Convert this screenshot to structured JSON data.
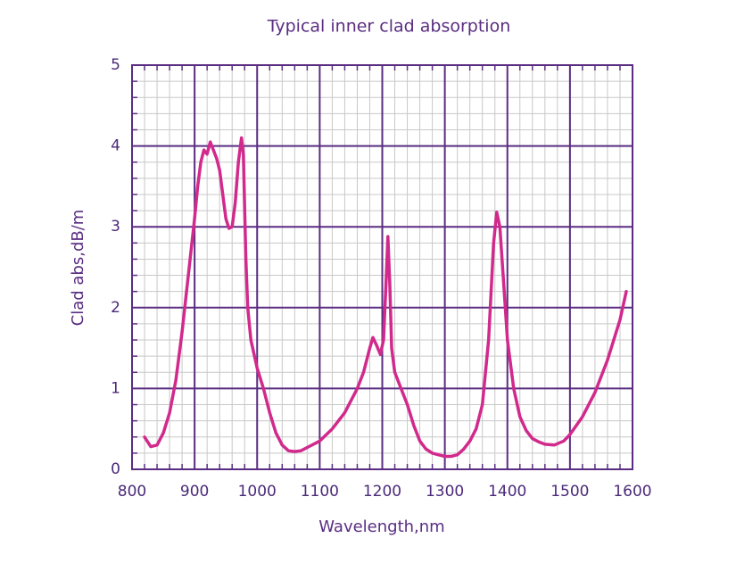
{
  "chart_data": {
    "type": "line",
    "title": "Typical inner clad absorption",
    "xlabel": "Wavelength,nm",
    "ylabel": "Clad abs,dB/m",
    "xlim": [
      800,
      1600
    ],
    "ylim": [
      0,
      5
    ],
    "xticks": [
      800,
      900,
      1000,
      1100,
      1200,
      1300,
      1400,
      1500,
      1600
    ],
    "yticks": [
      0,
      1,
      2,
      3,
      4,
      5
    ],
    "grid": true,
    "series": [
      {
        "color": "#d12a8c",
        "x": [
          820,
          830,
          840,
          850,
          860,
          870,
          880,
          890,
          900,
          905,
          910,
          915,
          920,
          925,
          930,
          935,
          940,
          945,
          950,
          955,
          960,
          965,
          970,
          975,
          978,
          982,
          985,
          990,
          1000,
          1010,
          1020,
          1030,
          1040,
          1050,
          1060,
          1070,
          1080,
          1100,
          1120,
          1140,
          1160,
          1170,
          1180,
          1185,
          1190,
          1197,
          1202,
          1206,
          1209,
          1212,
          1215,
          1220,
          1230,
          1240,
          1250,
          1260,
          1270,
          1280,
          1300,
          1310,
          1320,
          1330,
          1340,
          1350,
          1360,
          1370,
          1378,
          1383,
          1388,
          1395,
          1400,
          1410,
          1420,
          1430,
          1440,
          1450,
          1460,
          1475,
          1490,
          1500,
          1520,
          1540,
          1560,
          1580,
          1590
        ],
        "values": [
          0.4,
          0.28,
          0.3,
          0.45,
          0.7,
          1.1,
          1.7,
          2.4,
          3.1,
          3.5,
          3.8,
          3.95,
          3.9,
          4.05,
          3.95,
          3.85,
          3.7,
          3.4,
          3.1,
          2.98,
          3.0,
          3.3,
          3.8,
          4.1,
          3.9,
          2.6,
          2.0,
          1.6,
          1.25,
          1.0,
          0.7,
          0.45,
          0.3,
          0.23,
          0.22,
          0.23,
          0.27,
          0.35,
          0.5,
          0.7,
          1.0,
          1.2,
          1.5,
          1.63,
          1.55,
          1.42,
          1.6,
          2.3,
          2.88,
          2.3,
          1.5,
          1.2,
          1.0,
          0.8,
          0.55,
          0.35,
          0.25,
          0.2,
          0.16,
          0.16,
          0.18,
          0.25,
          0.35,
          0.5,
          0.8,
          1.6,
          2.8,
          3.18,
          3.0,
          2.2,
          1.6,
          1.0,
          0.65,
          0.48,
          0.38,
          0.34,
          0.31,
          0.3,
          0.35,
          0.43,
          0.65,
          0.95,
          1.35,
          1.85,
          2.2
        ]
      }
    ]
  }
}
